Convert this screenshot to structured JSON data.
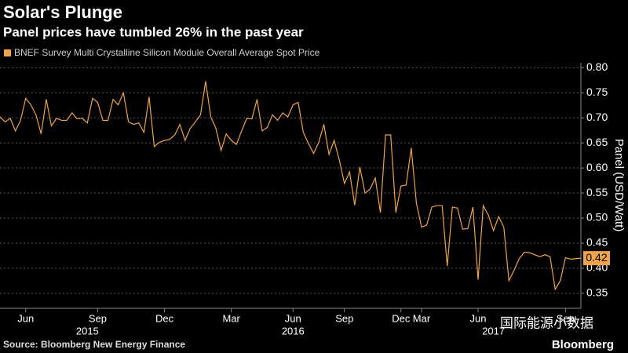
{
  "chart_data": {
    "type": "line",
    "title": "Solar's Plunge",
    "subtitle": "Panel prices have tumbled 26% in the past year",
    "y_axis_label": "Panel (USD/Watt)",
    "source": "Source: Bloomberg New Energy Finance",
    "brand": "Bloomberg",
    "watermark": "国际能源小数据",
    "series": [
      {
        "name": "BNEF Survey Multi Crystalline Silicon Module Overall Average Spot Price",
        "color": "#f0a34a",
        "values": [
          0.702,
          0.692,
          0.699,
          0.674,
          0.695,
          0.739,
          0.726,
          0.706,
          0.668,
          0.737,
          0.684,
          0.699,
          0.695,
          0.695,
          0.71,
          0.698,
          0.699,
          0.69,
          0.739,
          0.731,
          0.695,
          0.695,
          0.737,
          0.726,
          0.75,
          0.692,
          0.687,
          0.69,
          0.671,
          0.742,
          0.643,
          0.651,
          0.655,
          0.657,
          0.666,
          0.687,
          0.655,
          0.679,
          0.692,
          0.706,
          0.773,
          0.702,
          0.679,
          0.635,
          0.668,
          0.655,
          0.647,
          0.674,
          0.699,
          0.698,
          0.737,
          0.674,
          0.681,
          0.706,
          0.695,
          0.71,
          0.702,
          0.726,
          0.731,
          0.671,
          0.649,
          0.629,
          0.651,
          0.687,
          0.627,
          0.655,
          0.616,
          0.569,
          0.592,
          0.526,
          0.602,
          0.55,
          0.558,
          0.58,
          0.511,
          0.666,
          0.666,
          0.511,
          0.564,
          0.566,
          0.64,
          0.53,
          0.482,
          0.486,
          0.522,
          0.525,
          0.525,
          0.404,
          0.522,
          0.52,
          0.478,
          0.479,
          0.522,
          0.377,
          0.525,
          0.506,
          0.475,
          0.503,
          0.482,
          0.375,
          0.396,
          0.419,
          0.432,
          0.431,
          0.427,
          0.423,
          0.427,
          0.423,
          0.358,
          0.375,
          0.421,
          0.418,
          0.419,
          0.42
        ]
      }
    ],
    "xlim": [
      0,
      113
    ],
    "xticks": [
      {
        "value": 5,
        "label": "Jun"
      },
      {
        "value": 19,
        "label": "Sep"
      },
      {
        "value": 32,
        "label": "Dec"
      },
      {
        "value": 45,
        "label": "Mar"
      },
      {
        "value": 57,
        "label": "Jun"
      },
      {
        "value": 67,
        "label": "Sep"
      },
      {
        "value": 78,
        "label": "Dec"
      },
      {
        "value": 82,
        "label": "Mar"
      },
      {
        "value": 93,
        "label": "Jun"
      },
      {
        "value": 110,
        "label": "Sep"
      }
    ],
    "x_year_labels": [
      {
        "value": 17,
        "label": "2015"
      },
      {
        "value": 57,
        "label": "2016"
      },
      {
        "value": 96,
        "label": "2017"
      }
    ],
    "ylim": [
      0.32,
      0.81
    ],
    "yticks": [
      0.35,
      {
        "value": 0.4,
        "label": "0.40"
      },
      0.45,
      {
        "value": 0.5,
        "label": "0.50"
      },
      0.55,
      {
        "value": 0.6,
        "label": "0.60"
      },
      0.65,
      {
        "value": 0.7,
        "label": "0.70"
      },
      0.75,
      {
        "value": 0.8,
        "label": "0.80"
      }
    ],
    "grid": true
  }
}
